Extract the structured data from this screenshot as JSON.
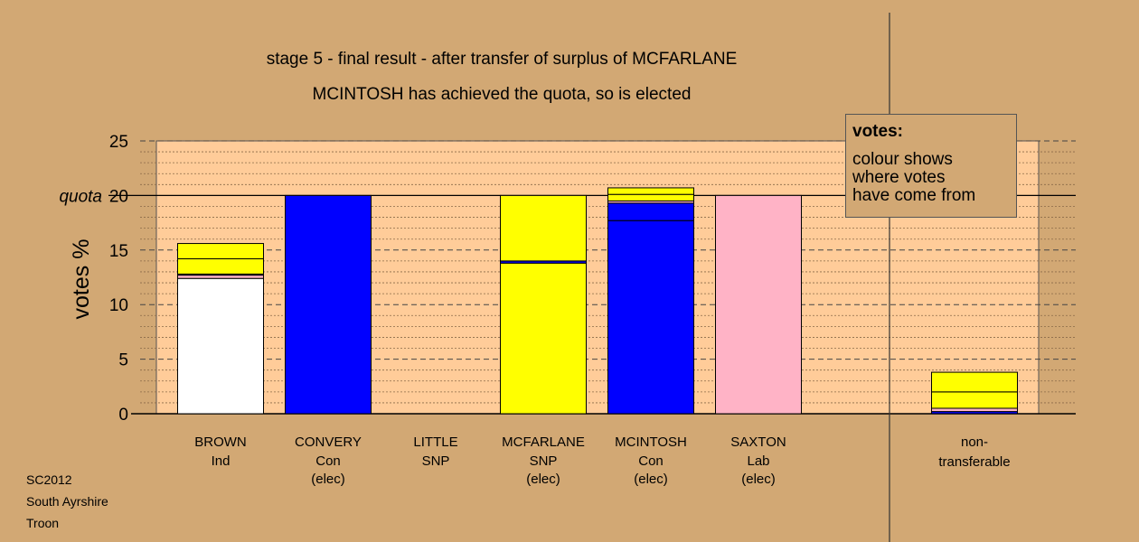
{
  "chart_data": {
    "type": "bar",
    "title": "stage 5 - final result - after transfer of surplus of MCFARLANE",
    "subtitle": "MCINTOSH has achieved the quota, so is elected",
    "ylabel": "votes %",
    "ylim": [
      0,
      25
    ],
    "yticks": [
      "0",
      "5",
      "10",
      "15",
      "20",
      "25"
    ],
    "quota_label": "quota",
    "quota": 20,
    "bars": [
      {
        "name": "BROWN",
        "party": "Ind",
        "status": "",
        "segments": [
          {
            "value": 12.4,
            "color": "#FFFFFF"
          },
          {
            "value": 0.3,
            "color": "#FFB3C6"
          },
          {
            "value": 0.1,
            "color": "#0000FF"
          },
          {
            "value": 1.4,
            "color": "#FFFF00"
          },
          {
            "value": 1.4,
            "color": "#FFFF00"
          }
        ]
      },
      {
        "name": "CONVERY",
        "party": "Con",
        "status": "(elec)",
        "segments": [
          {
            "value": 20.0,
            "color": "#0000FF"
          }
        ]
      },
      {
        "name": "LITTLE",
        "party": "SNP",
        "status": "",
        "segments": []
      },
      {
        "name": "MCFARLANE",
        "party": "SNP",
        "status": "(elec)",
        "segments": [
          {
            "value": 13.8,
            "color": "#FFFF00"
          },
          {
            "value": 0.2,
            "color": "#0000FF"
          },
          {
            "value": 6.0,
            "color": "#FFFF00"
          }
        ]
      },
      {
        "name": "MCINTOSH",
        "party": "Con",
        "status": "(elec)",
        "segments": [
          {
            "value": 17.7,
            "color": "#0000FF"
          },
          {
            "value": 1.6,
            "color": "#0000FF"
          },
          {
            "value": 0.2,
            "color": "#FFB3C6"
          },
          {
            "value": 0.6,
            "color": "#FFFF00"
          },
          {
            "value": 0.6,
            "color": "#FFFF00"
          }
        ]
      },
      {
        "name": "SAXTON",
        "party": "Lab",
        "status": "(elec)",
        "segments": [
          {
            "value": 20.0,
            "color": "#FFB3C6"
          }
        ]
      }
    ],
    "nontransferable": {
      "label1": "non-",
      "label2": "transferable",
      "segments": [
        {
          "value": 0.2,
          "color": "#0000FF"
        },
        {
          "value": 0.3,
          "color": "#FFB3C6"
        },
        {
          "value": 1.5,
          "color": "#FFFF00"
        },
        {
          "value": 1.8,
          "color": "#FFFF00"
        }
      ]
    },
    "colors": {
      "background": "#D2A874",
      "plot_area": "#FFCC99",
      "con": "#0000FF",
      "snp": "#FFFF00",
      "lab": "#FFB3C6",
      "ind": "#FFFFFF"
    },
    "grid": "dotted minor, dashed major"
  },
  "legend": {
    "title": "votes:",
    "lines": [
      "colour shows",
      "where votes",
      "have come from"
    ]
  },
  "footer": {
    "line1": "SC2012",
    "line2": "South Ayrshire",
    "line3": "Troon"
  }
}
